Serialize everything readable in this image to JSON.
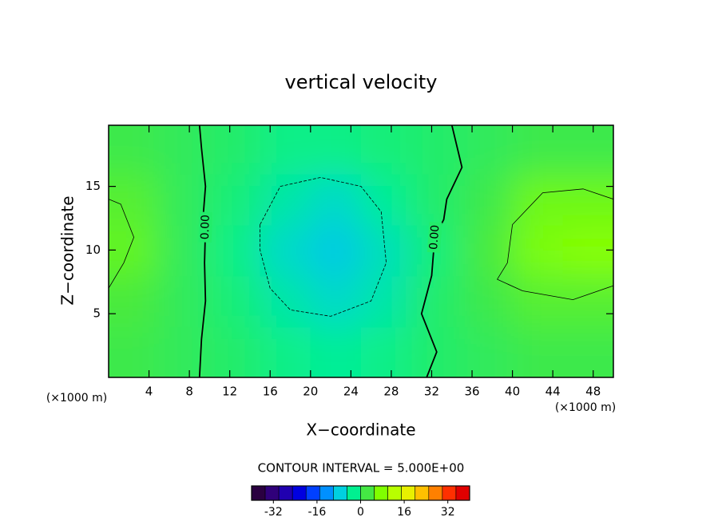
{
  "chart_data": {
    "type": "contour",
    "title": "vertical velocity",
    "x_label": "X−coordinate",
    "y_label": "Z−coordinate",
    "x_unit_labels": [
      "(×1000 m)",
      "(×1000 m)"
    ],
    "annotation": "CONTOUR INTERVAL = 5.000E+00",
    "xlim": [
      0,
      50
    ],
    "ylim": [
      0,
      19.8
    ],
    "xticks": [
      4,
      8,
      12,
      16,
      20,
      24,
      28,
      32,
      36,
      40,
      44,
      48
    ],
    "yticks": [
      5,
      10,
      15
    ],
    "field": {
      "x": [
        2.5,
        7.5,
        12.5,
        17.5,
        22.5,
        27.5,
        32.5,
        37.5,
        42.5,
        47.5
      ],
      "z": [
        2,
        6,
        10,
        14,
        18
      ],
      "values": [
        [
          2,
          1,
          0,
          -2,
          -3,
          -2,
          0,
          1,
          2,
          2
        ],
        [
          3,
          1,
          -1,
          -4,
          -6,
          -4,
          0,
          2,
          4,
          4
        ],
        [
          5,
          1,
          -2,
          -6,
          -8,
          -5,
          -1,
          3,
          7,
          8
        ],
        [
          4,
          1,
          -1,
          -4,
          -6,
          -3,
          0,
          2,
          6,
          6
        ],
        [
          2,
          1,
          0,
          -2,
          -2,
          -1,
          0,
          1,
          2,
          2
        ]
      ]
    },
    "contours": [
      {
        "level": 0,
        "label": "0.00",
        "x": [
          9.0,
          9.2,
          9.6,
          9.5,
          9.6,
          9.4,
          9.6,
          9.2,
          9.0
        ],
        "z": [
          0,
          3,
          6,
          9,
          11.8,
          13,
          15,
          18,
          19.8
        ]
      },
      {
        "level": 0,
        "label": "0.00",
        "x": [
          31.5,
          32.5,
          31.0,
          32.0,
          32.3,
          33.2,
          33.5,
          35.0,
          34.0
        ],
        "z": [
          0,
          2,
          5,
          8,
          11,
          12.4,
          14,
          16.5,
          19.8
        ]
      },
      {
        "level": -5,
        "x": [
          15,
          17,
          21,
          25,
          27,
          27.5,
          26,
          22,
          18,
          16,
          15,
          15
        ],
        "z": [
          12,
          15,
          15.7,
          15,
          13,
          9,
          6,
          4.8,
          5.3,
          7,
          10,
          12
        ]
      },
      {
        "level": 5,
        "x": [
          50,
          47,
          43,
          40,
          39.5,
          38.5,
          41,
          46,
          50
        ],
        "z": [
          14,
          14.8,
          14.5,
          12,
          9,
          7.7,
          6.8,
          6.1,
          7.2
        ]
      },
      {
        "level": 5,
        "x": [
          0,
          1.2,
          2.5,
          1.5,
          0
        ],
        "z": [
          14,
          13.6,
          11,
          9,
          7
        ]
      }
    ],
    "colorbar": {
      "lim": [
        -40,
        40
      ],
      "ticks": [
        -32,
        -16,
        0,
        16,
        32
      ],
      "colors": [
        "#2a0040",
        "#30007a",
        "#2000b0",
        "#0000e0",
        "#0040ff",
        "#0090ff",
        "#00d0e0",
        "#00f090",
        "#44e844",
        "#80ff00",
        "#b8ff00",
        "#e8f000",
        "#ffc000",
        "#ff8000",
        "#ff3000",
        "#e00000"
      ]
    }
  }
}
